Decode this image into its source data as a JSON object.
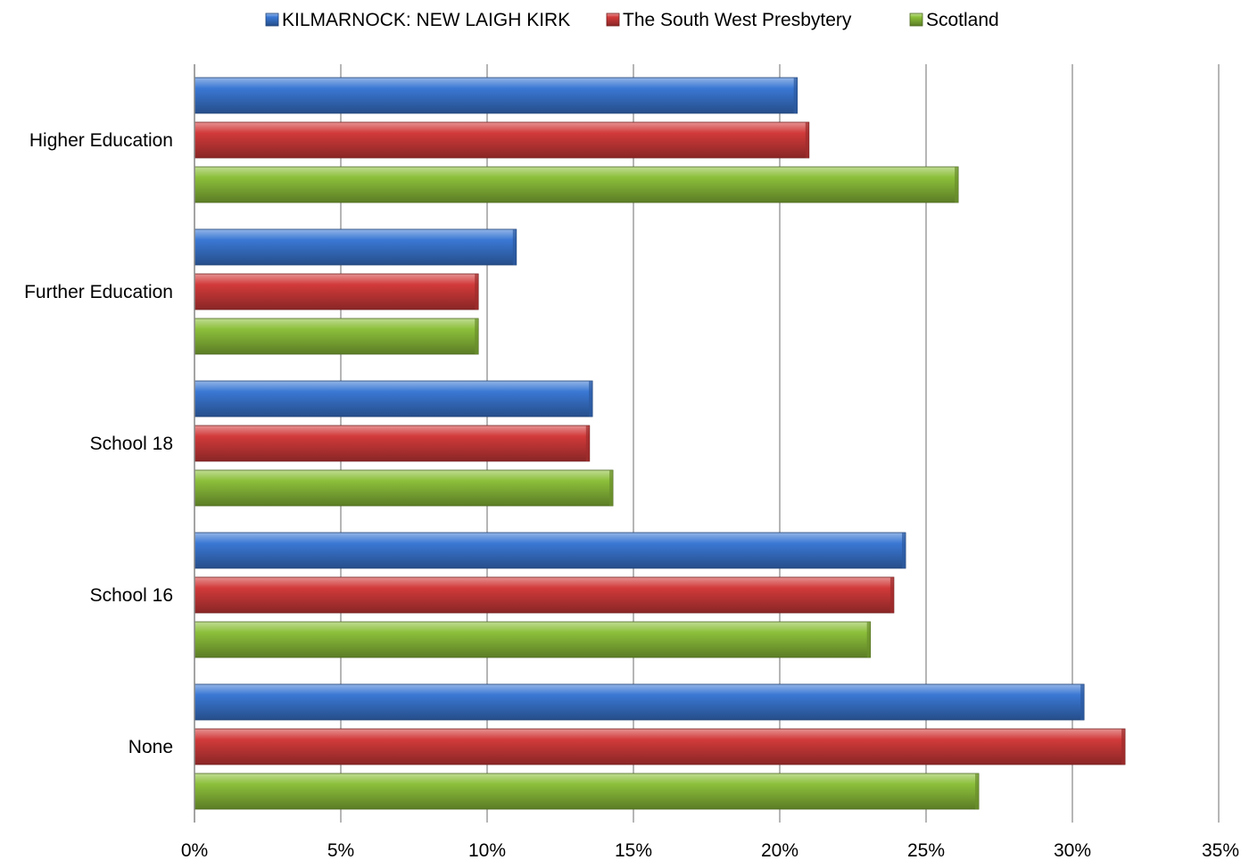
{
  "chart_data": {
    "type": "bar",
    "orientation": "horizontal",
    "categories": [
      "Higher Education",
      "Further Education",
      "School 18",
      "School 16",
      "None"
    ],
    "series": [
      {
        "name": "KILMARNOCK: NEW LAIGH KIRK",
        "color": "#3A78D4",
        "values": [
          20.6,
          11.0,
          13.6,
          24.3,
          30.4
        ]
      },
      {
        "name": "The South West Presbytery",
        "color": "#D23A3A",
        "values": [
          21.0,
          9.7,
          13.5,
          23.9,
          31.8
        ]
      },
      {
        "name": "Scotland",
        "color": "#8CBF3A",
        "values": [
          26.1,
          9.7,
          14.3,
          23.1,
          26.8
        ]
      }
    ],
    "xlim": [
      0,
      35
    ],
    "xticks": [
      0,
      5,
      10,
      15,
      20,
      25,
      30,
      35
    ],
    "xtick_labels": [
      "0%",
      "5%",
      "10%",
      "15%",
      "20%",
      "25%",
      "30%",
      "35%"
    ],
    "grid": "vertical",
    "legend_position": "top"
  }
}
